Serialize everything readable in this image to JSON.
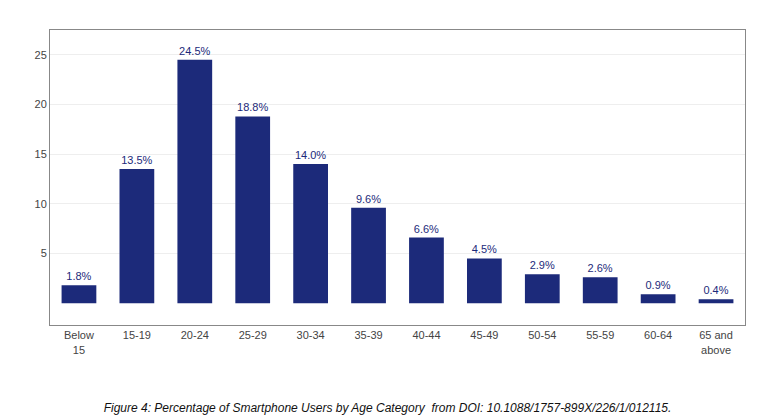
{
  "chart_data": {
    "type": "bar",
    "title": "Figure 4: Percentage of Smartphone Users by Age Category  from DOI: 10.1088/1757-899X/226/1/012115.",
    "categories": [
      "Below\n15",
      "15-19",
      "20-24",
      "25-29",
      "30-34",
      "35-39",
      "40-44",
      "45-49",
      "50-54",
      "55-59",
      "60-64",
      "65 and\nabove"
    ],
    "values": [
      1.8,
      13.5,
      24.5,
      18.8,
      14.0,
      9.6,
      6.6,
      4.5,
      2.9,
      2.6,
      0.9,
      0.4
    ],
    "value_labels": [
      "1.8%",
      "13.5%",
      "24.5%",
      "18.8%",
      "14.0%",
      "9.6%",
      "6.6%",
      "4.5%",
      "2.9%",
      "2.6%",
      "0.9%",
      "0.4%"
    ],
    "data_labels": true,
    "color": "#1c2a7a",
    "ylim": [
      -2.2,
      27.5
    ],
    "yticks": [
      5,
      10,
      15,
      20,
      25
    ],
    "grid": true
  }
}
